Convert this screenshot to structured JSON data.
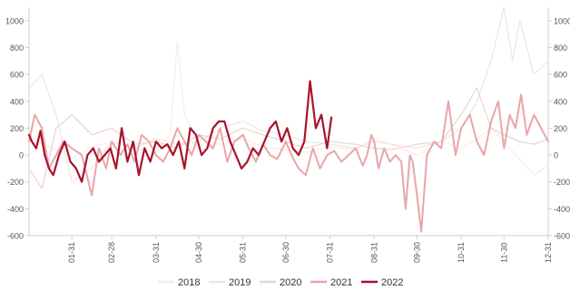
{
  "chart_data": {
    "type": "line",
    "title": "",
    "xlabel": "",
    "ylabel": "",
    "ylim": [
      -600,
      1100
    ],
    "y_ticks": [
      -600,
      -400,
      -200,
      0,
      200,
      400,
      600,
      800,
      1000
    ],
    "y_axes": "left-and-right",
    "x_tick_labels": [
      "01-31",
      "02-28",
      "03-31",
      "04-30",
      "05-31",
      "06-30",
      "07-31",
      "08-31",
      "09-30",
      "10-31",
      "11-30",
      "12-31"
    ],
    "x_tick_days": [
      31,
      59,
      90,
      120,
      151,
      181,
      212,
      243,
      273,
      304,
      334,
      365
    ],
    "xlim_days": [
      1,
      365
    ],
    "grid": false,
    "legend_position": "bottom-center",
    "series": [
      {
        "name": "2018",
        "color": "#fbe9ea",
        "width": 1.2,
        "x": [
          1,
          10,
          20,
          31,
          45,
          59,
          75,
          90,
          100,
          105,
          110,
          120,
          135,
          151,
          165,
          181,
          195,
          212,
          230,
          243,
          255,
          273,
          290,
          304,
          315,
          325,
          334,
          345,
          355,
          365
        ],
        "y": [
          150,
          80,
          40,
          -20,
          60,
          100,
          50,
          20,
          150,
          850,
          300,
          100,
          80,
          120,
          60,
          40,
          20,
          60,
          40,
          120,
          80,
          0,
          100,
          50,
          120,
          200,
          100,
          -30,
          -150,
          -80
        ]
      },
      {
        "name": "2019",
        "color": "#f3e3e4",
        "width": 1.2,
        "x": [
          1,
          10,
          20,
          31,
          45,
          59,
          75,
          90,
          105,
          120,
          135,
          151,
          165,
          181,
          195,
          212,
          230,
          243,
          255,
          273,
          290,
          304,
          315,
          325,
          334,
          340,
          345,
          355,
          365
        ],
        "y": [
          500,
          600,
          300,
          -200,
          -100,
          100,
          50,
          120,
          80,
          100,
          200,
          250,
          180,
          150,
          100,
          80,
          50,
          100,
          80,
          50,
          100,
          200,
          400,
          700,
          1100,
          700,
          1000,
          600,
          700
        ]
      },
      {
        "name": "2020",
        "color": "#ead3d5",
        "width": 1.2,
        "x": [
          1,
          10,
          20,
          31,
          45,
          59,
          75,
          90,
          105,
          120,
          135,
          151,
          165,
          181,
          195,
          212,
          230,
          243,
          255,
          273,
          290,
          304,
          315,
          325,
          334,
          345,
          355,
          365
        ],
        "y": [
          -100,
          -250,
          200,
          300,
          150,
          200,
          80,
          100,
          50,
          150,
          120,
          200,
          150,
          100,
          50,
          100,
          80,
          50,
          40,
          80,
          100,
          300,
          500,
          200,
          150,
          100,
          80,
          120
        ]
      },
      {
        "name": "2021",
        "color": "#e8a6a8",
        "width": 2,
        "x": [
          1,
          5,
          10,
          15,
          20,
          25,
          31,
          38,
          45,
          50,
          55,
          59,
          65,
          70,
          75,
          80,
          85,
          90,
          95,
          100,
          105,
          110,
          115,
          120,
          125,
          130,
          135,
          140,
          145,
          151,
          155,
          160,
          165,
          170,
          175,
          181,
          185,
          190,
          195,
          200,
          205,
          210,
          215,
          220,
          225,
          230,
          235,
          238,
          241,
          243,
          246,
          250,
          254,
          258,
          262,
          265,
          268,
          270,
          273,
          276,
          280,
          285,
          290,
          295,
          300,
          304,
          310,
          315,
          320,
          325,
          330,
          334,
          338,
          342,
          346,
          350,
          355,
          360,
          365
        ],
        "y": [
          100,
          300,
          200,
          -100,
          0,
          100,
          50,
          0,
          -300,
          50,
          -100,
          100,
          0,
          80,
          -50,
          150,
          100,
          0,
          -50,
          50,
          200,
          100,
          0,
          150,
          100,
          50,
          200,
          -50,
          100,
          150,
          50,
          -50,
          80,
          0,
          -30,
          100,
          0,
          -100,
          -150,
          50,
          -100,
          0,
          30,
          -50,
          0,
          50,
          -80,
          0,
          150,
          100,
          -100,
          50,
          -50,
          0,
          -50,
          -400,
          0,
          -50,
          -300,
          -570,
          0,
          100,
          50,
          400,
          0,
          200,
          300,
          100,
          0,
          250,
          400,
          50,
          300,
          200,
          450,
          150,
          300,
          200,
          100
        ]
      },
      {
        "name": "2022",
        "color": "#a8142a",
        "width": 2.2,
        "x": [
          1,
          3,
          6,
          9,
          12,
          15,
          18,
          22,
          26,
          30,
          34,
          38,
          42,
          46,
          50,
          54,
          58,
          62,
          66,
          70,
          74,
          78,
          82,
          86,
          90,
          94,
          98,
          102,
          106,
          110,
          114,
          118,
          122,
          126,
          130,
          134,
          138,
          142,
          146,
          150,
          154,
          158,
          162,
          166,
          170,
          174,
          178,
          182,
          186,
          190,
          194,
          198,
          202,
          206,
          210,
          213
        ],
        "y": [
          150,
          100,
          50,
          180,
          0,
          -100,
          -150,
          0,
          100,
          -50,
          -100,
          -200,
          0,
          50,
          -50,
          0,
          50,
          -100,
          200,
          -50,
          100,
          -150,
          50,
          -50,
          100,
          50,
          80,
          0,
          100,
          -100,
          200,
          150,
          0,
          50,
          200,
          250,
          250,
          100,
          0,
          -100,
          -50,
          50,
          0,
          100,
          200,
          250,
          100,
          200,
          50,
          0,
          100,
          550,
          200,
          300,
          50,
          280
        ]
      }
    ]
  }
}
